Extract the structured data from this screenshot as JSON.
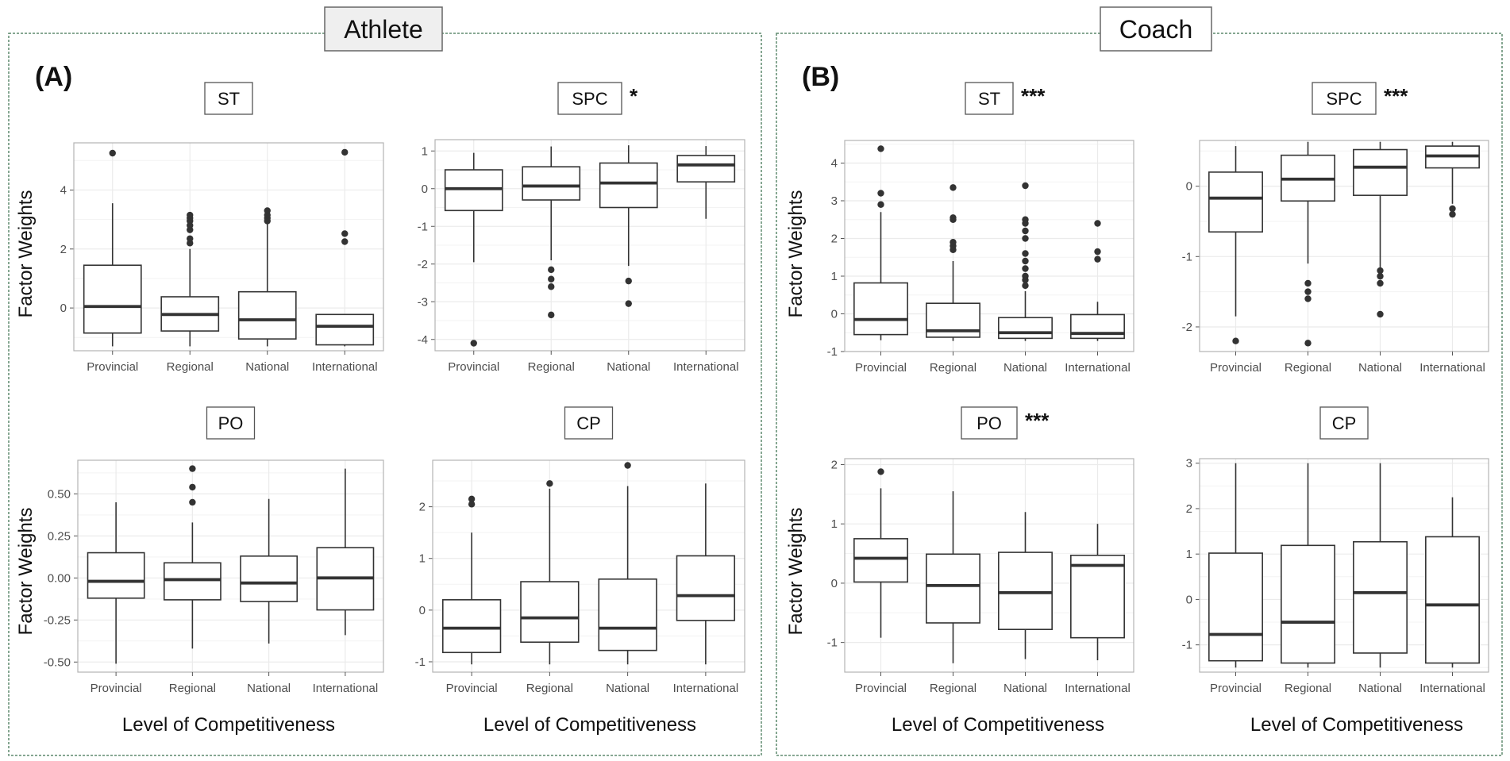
{
  "colors": {
    "panel_bg": "#ffffff",
    "grid": "#ebebeb",
    "plot_border": "#b3b3b3",
    "frame": "#5f8a6e",
    "box_line": "#333333"
  },
  "sections": [
    {
      "title": "Athlete",
      "letter": "(A)"
    },
    {
      "title": "Coach",
      "letter": "(B)"
    }
  ],
  "ylabel": "Factor Weights",
  "xlabel": "Level of Competitiveness",
  "categories": [
    "Provincial",
    "Regional",
    "National",
    "International"
  ],
  "chart_data": [
    {
      "type": "box",
      "section": "Athlete",
      "title": "ST",
      "significance": "",
      "ylim": [
        -1.45,
        5.6
      ],
      "yticks": [
        0,
        2,
        4
      ],
      "boxes": [
        {
          "category": "Provincial",
          "whisker_low": -1.3,
          "q1": -0.85,
          "median": 0.05,
          "q3": 1.45,
          "whisker_high": 3.55,
          "outliers": [
            5.25
          ]
        },
        {
          "category": "Regional",
          "whisker_low": -1.3,
          "q1": -0.78,
          "median": -0.22,
          "q3": 0.38,
          "whisker_high": 2.0,
          "outliers": [
            2.2,
            2.35,
            2.65,
            2.8,
            2.95,
            3.05,
            3.15
          ]
        },
        {
          "category": "National",
          "whisker_low": -1.3,
          "q1": -1.05,
          "median": -0.4,
          "q3": 0.55,
          "whisker_high": 2.85,
          "outliers": [
            2.95,
            3.05,
            3.15,
            3.3
          ]
        },
        {
          "category": "International",
          "whisker_low": -1.3,
          "q1": -1.25,
          "median": -0.62,
          "q3": -0.22,
          "whisker_high": -0.22,
          "outliers": [
            2.25,
            2.52,
            5.28
          ]
        }
      ]
    },
    {
      "type": "box",
      "section": "Athlete",
      "title": "SPC",
      "significance": "*",
      "ylim": [
        -4.3,
        1.3
      ],
      "yticks": [
        1,
        0,
        -1,
        -2,
        -3,
        -4
      ],
      "boxes": [
        {
          "category": "Provincial",
          "whisker_low": -1.95,
          "q1": -0.58,
          "median": 0.0,
          "q3": 0.5,
          "whisker_high": 0.95,
          "outliers": [
            -4.1
          ]
        },
        {
          "category": "Regional",
          "whisker_low": -1.9,
          "q1": -0.3,
          "median": 0.07,
          "q3": 0.58,
          "whisker_high": 1.12,
          "outliers": [
            -2.15,
            -2.4,
            -2.6,
            -3.35
          ]
        },
        {
          "category": "National",
          "whisker_low": -2.05,
          "q1": -0.5,
          "median": 0.15,
          "q3": 0.68,
          "whisker_high": 1.15,
          "outliers": [
            -2.45,
            -3.05
          ]
        },
        {
          "category": "International",
          "whisker_low": -0.8,
          "q1": 0.18,
          "median": 0.63,
          "q3": 0.88,
          "whisker_high": 1.13,
          "outliers": []
        }
      ]
    },
    {
      "type": "box",
      "section": "Athlete",
      "title": "PO",
      "significance": "",
      "ylim": [
        -0.56,
        0.7
      ],
      "yticks": [
        0.5,
        0.25,
        0.0,
        -0.25,
        -0.5
      ],
      "ytick_labels": [
        "0.50",
        "0.25",
        "0.00",
        "-0.25",
        "-0.50"
      ],
      "boxes": [
        {
          "category": "Provincial",
          "whisker_low": -0.51,
          "q1": -0.12,
          "median": -0.02,
          "q3": 0.15,
          "whisker_high": 0.45,
          "outliers": []
        },
        {
          "category": "Regional",
          "whisker_low": -0.42,
          "q1": -0.13,
          "median": -0.01,
          "q3": 0.09,
          "whisker_high": 0.33,
          "outliers": [
            0.45,
            0.54,
            0.65
          ]
        },
        {
          "category": "National",
          "whisker_low": -0.39,
          "q1": -0.14,
          "median": -0.03,
          "q3": 0.13,
          "whisker_high": 0.47,
          "outliers": []
        },
        {
          "category": "International",
          "whisker_low": -0.34,
          "q1": -0.19,
          "median": -0.0,
          "q3": 0.18,
          "whisker_high": 0.65,
          "outliers": []
        }
      ]
    },
    {
      "type": "box",
      "section": "Athlete",
      "title": "CP",
      "significance": "",
      "ylim": [
        -1.2,
        2.9
      ],
      "yticks": [
        2,
        1,
        0,
        -1
      ],
      "boxes": [
        {
          "category": "Provincial",
          "whisker_low": -1.05,
          "q1": -0.82,
          "median": -0.35,
          "q3": 0.2,
          "whisker_high": 1.5,
          "outliers": [
            2.05,
            2.15
          ]
        },
        {
          "category": "Regional",
          "whisker_low": -1.05,
          "q1": -0.62,
          "median": -0.15,
          "q3": 0.55,
          "whisker_high": 2.35,
          "outliers": [
            2.45
          ]
        },
        {
          "category": "National",
          "whisker_low": -1.05,
          "q1": -0.78,
          "median": -0.35,
          "q3": 0.6,
          "whisker_high": 2.4,
          "outliers": [
            2.8
          ]
        },
        {
          "category": "International",
          "whisker_low": -1.05,
          "q1": -0.2,
          "median": 0.28,
          "q3": 1.05,
          "whisker_high": 2.45,
          "outliers": []
        }
      ]
    },
    {
      "type": "box",
      "section": "Coach",
      "title": "ST",
      "significance": "***",
      "ylim": [
        -1.0,
        4.6
      ],
      "yticks": [
        4,
        3,
        2,
        1,
        0,
        -1
      ],
      "boxes": [
        {
          "category": "Provincial",
          "whisker_low": -0.7,
          "q1": -0.55,
          "median": -0.15,
          "q3": 0.82,
          "whisker_high": 2.7,
          "outliers": [
            2.9,
            3.2,
            4.38
          ]
        },
        {
          "category": "Regional",
          "whisker_low": -0.72,
          "q1": -0.62,
          "median": -0.45,
          "q3": 0.28,
          "whisker_high": 1.4,
          "outliers": [
            1.7,
            1.8,
            1.9,
            2.5,
            2.55,
            3.35
          ]
        },
        {
          "category": "National",
          "whisker_low": -0.72,
          "q1": -0.65,
          "median": -0.5,
          "q3": -0.1,
          "whisker_high": 0.6,
          "outliers": [
            0.75,
            0.9,
            1.0,
            1.2,
            1.4,
            1.6,
            2.0,
            2.2,
            2.4,
            2.5,
            3.4
          ]
        },
        {
          "category": "International",
          "whisker_low": -0.72,
          "q1": -0.65,
          "median": -0.52,
          "q3": -0.02,
          "whisker_high": 0.32,
          "outliers": [
            1.45,
            1.65,
            2.4
          ]
        }
      ]
    },
    {
      "type": "box",
      "section": "Coach",
      "title": "SPC",
      "significance": "***",
      "ylim": [
        -2.35,
        0.65
      ],
      "yticks": [
        0,
        -1,
        -2
      ],
      "boxes": [
        {
          "category": "Provincial",
          "whisker_low": -1.85,
          "q1": -0.65,
          "median": -0.17,
          "q3": 0.2,
          "whisker_high": 0.57,
          "outliers": [
            -2.2
          ]
        },
        {
          "category": "Regional",
          "whisker_low": -1.1,
          "q1": -0.21,
          "median": 0.1,
          "q3": 0.44,
          "whisker_high": 0.63,
          "outliers": [
            -1.38,
            -1.5,
            -1.6,
            -2.23
          ]
        },
        {
          "category": "National",
          "whisker_low": -1.2,
          "q1": -0.13,
          "median": 0.27,
          "q3": 0.52,
          "whisker_high": 0.63,
          "outliers": [
            -1.2,
            -1.28,
            -1.38,
            -1.82
          ]
        },
        {
          "category": "International",
          "whisker_low": -0.25,
          "q1": 0.26,
          "median": 0.43,
          "q3": 0.57,
          "whisker_high": 0.63,
          "outliers": [
            -0.32,
            -0.4
          ]
        }
      ]
    },
    {
      "type": "box",
      "section": "Coach",
      "title": "PO",
      "significance": "***",
      "ylim": [
        -1.5,
        2.1
      ],
      "yticks": [
        2,
        1,
        0,
        -1
      ],
      "boxes": [
        {
          "category": "Provincial",
          "whisker_low": -0.92,
          "q1": 0.02,
          "median": 0.42,
          "q3": 0.75,
          "whisker_high": 1.6,
          "outliers": [
            1.88
          ]
        },
        {
          "category": "Regional",
          "whisker_low": -1.35,
          "q1": -0.67,
          "median": -0.04,
          "q3": 0.49,
          "whisker_high": 1.55,
          "outliers": []
        },
        {
          "category": "National",
          "whisker_low": -1.28,
          "q1": -0.78,
          "median": -0.16,
          "q3": 0.52,
          "whisker_high": 1.2,
          "outliers": []
        },
        {
          "category": "International",
          "whisker_low": -1.3,
          "q1": -0.92,
          "median": 0.3,
          "q3": 0.47,
          "whisker_high": 1.0,
          "outliers": []
        }
      ]
    },
    {
      "type": "box",
      "section": "Coach",
      "title": "CP",
      "significance": "",
      "ylim": [
        -1.6,
        3.1
      ],
      "yticks": [
        3,
        2,
        1,
        0,
        -1
      ],
      "boxes": [
        {
          "category": "Provincial",
          "whisker_low": -1.5,
          "q1": -1.35,
          "median": -0.77,
          "q3": 1.02,
          "whisker_high": 3.0,
          "outliers": []
        },
        {
          "category": "Regional",
          "whisker_low": -1.5,
          "q1": -1.4,
          "median": -0.5,
          "q3": 1.19,
          "whisker_high": 3.0,
          "outliers": []
        },
        {
          "category": "National",
          "whisker_low": -1.5,
          "q1": -1.18,
          "median": 0.15,
          "q3": 1.27,
          "whisker_high": 3.0,
          "outliers": []
        },
        {
          "category": "International",
          "whisker_low": -1.5,
          "q1": -1.4,
          "median": -0.12,
          "q3": 1.38,
          "whisker_high": 2.25,
          "outliers": []
        }
      ]
    }
  ]
}
